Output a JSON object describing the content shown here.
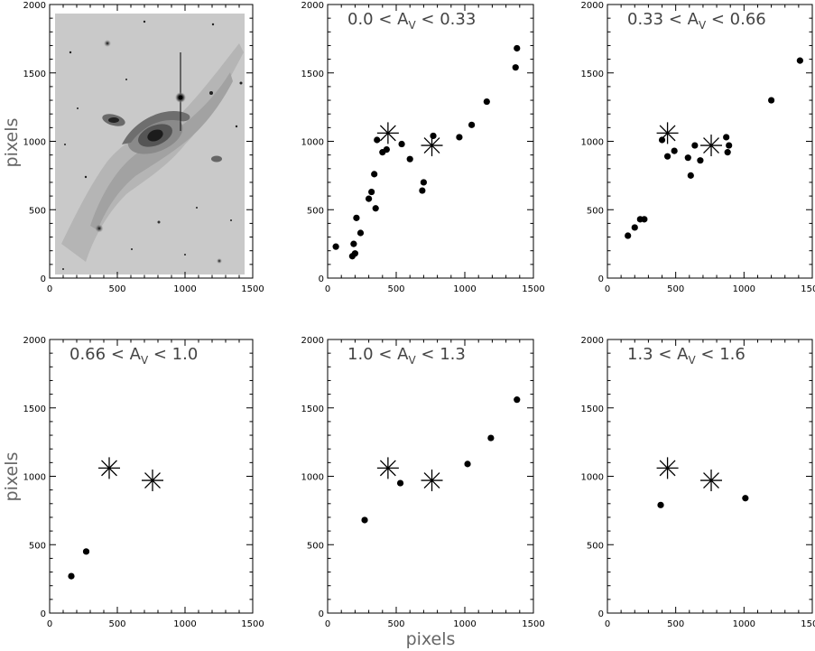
{
  "figure": {
    "ylabel_top": "pixels",
    "ylabel_bottom": "pixels",
    "xlabel_bottom": "pixels"
  },
  "image_panel": {
    "image": "grayscale-galaxy-image",
    "xlim": [
      0,
      1500
    ],
    "ylim": [
      0,
      2000
    ],
    "xticks": [
      "0",
      "500",
      "1000",
      "1500"
    ],
    "yticks": [
      "0",
      "500",
      "1000",
      "1500",
      "2000"
    ]
  },
  "chart_data": [
    {
      "type": "scatter",
      "label_low": "0.0",
      "label_mid": "< A",
      "label_sub": "V",
      "label_high": "< 0.33",
      "xlim": [
        0,
        1500
      ],
      "ylim": [
        0,
        2000
      ],
      "xticks": [
        "0",
        "500",
        "1000",
        "1500"
      ],
      "yticks": [
        "0",
        "500",
        "1000",
        "1500",
        "2000"
      ],
      "points": [
        [
          60,
          230
        ],
        [
          180,
          160
        ],
        [
          190,
          250
        ],
        [
          200,
          180
        ],
        [
          210,
          440
        ],
        [
          240,
          330
        ],
        [
          300,
          580
        ],
        [
          320,
          630
        ],
        [
          340,
          760
        ],
        [
          350,
          510
        ],
        [
          360,
          1010
        ],
        [
          400,
          920
        ],
        [
          430,
          940
        ],
        [
          540,
          980
        ],
        [
          600,
          870
        ],
        [
          690,
          640
        ],
        [
          700,
          700
        ],
        [
          770,
          1040
        ],
        [
          960,
          1030
        ],
        [
          1050,
          1120
        ],
        [
          1160,
          1290
        ],
        [
          1370,
          1540
        ],
        [
          1380,
          1680
        ]
      ],
      "stars": [
        [
          440,
          1060
        ],
        [
          760,
          970
        ]
      ]
    },
    {
      "type": "scatter",
      "label_low": "0.33",
      "label_mid": "< A",
      "label_sub": "V",
      "label_high": "< 0.66",
      "xlim": [
        0,
        1500
      ],
      "ylim": [
        0,
        2000
      ],
      "xticks": [
        "0",
        "500",
        "1000",
        "1500"
      ],
      "yticks": [
        "0",
        "500",
        "1000",
        "1500",
        "2000"
      ],
      "points": [
        [
          150,
          310
        ],
        [
          200,
          370
        ],
        [
          240,
          430
        ],
        [
          270,
          430
        ],
        [
          400,
          1010
        ],
        [
          440,
          890
        ],
        [
          490,
          930
        ],
        [
          590,
          880
        ],
        [
          610,
          750
        ],
        [
          640,
          970
        ],
        [
          680,
          860
        ],
        [
          870,
          1030
        ],
        [
          880,
          920
        ],
        [
          890,
          970
        ],
        [
          1200,
          1300
        ],
        [
          1410,
          1590
        ]
      ],
      "stars": [
        [
          440,
          1060
        ],
        [
          760,
          970
        ]
      ]
    },
    {
      "type": "scatter",
      "label_low": "0.66",
      "label_mid": "< A",
      "label_sub": "V",
      "label_high": "< 1.0",
      "xlim": [
        0,
        1500
      ],
      "ylim": [
        0,
        2000
      ],
      "xticks": [
        "0",
        "500",
        "1000",
        "1500"
      ],
      "yticks": [
        "0",
        "500",
        "1000",
        "1500",
        "2000"
      ],
      "points": [
        [
          160,
          270
        ],
        [
          270,
          450
        ]
      ],
      "stars": [
        [
          440,
          1060
        ],
        [
          760,
          970
        ]
      ]
    },
    {
      "type": "scatter",
      "label_low": "1.0",
      "label_mid": "< A",
      "label_sub": "V",
      "label_high": "< 1.3",
      "xlim": [
        0,
        1500
      ],
      "ylim": [
        0,
        2000
      ],
      "xticks": [
        "0",
        "500",
        "1000",
        "1500"
      ],
      "yticks": [
        "0",
        "500",
        "1000",
        "1500",
        "2000"
      ],
      "points": [
        [
          270,
          680
        ],
        [
          530,
          950
        ],
        [
          1020,
          1090
        ],
        [
          1190,
          1280
        ],
        [
          1380,
          1560
        ]
      ],
      "stars": [
        [
          440,
          1060
        ],
        [
          760,
          970
        ]
      ]
    },
    {
      "type": "scatter",
      "label_low": "1.3",
      "label_mid": "< A",
      "label_sub": "V",
      "label_high": "< 1.6",
      "xlim": [
        0,
        1500
      ],
      "ylim": [
        0,
        2000
      ],
      "xticks": [
        "0",
        "500",
        "1000",
        "1500"
      ],
      "yticks": [
        "0",
        "500",
        "1000",
        "1500",
        "2000"
      ],
      "points": [
        [
          390,
          790
        ],
        [
          1010,
          840
        ]
      ],
      "stars": [
        [
          440,
          1060
        ],
        [
          760,
          970
        ]
      ]
    }
  ]
}
